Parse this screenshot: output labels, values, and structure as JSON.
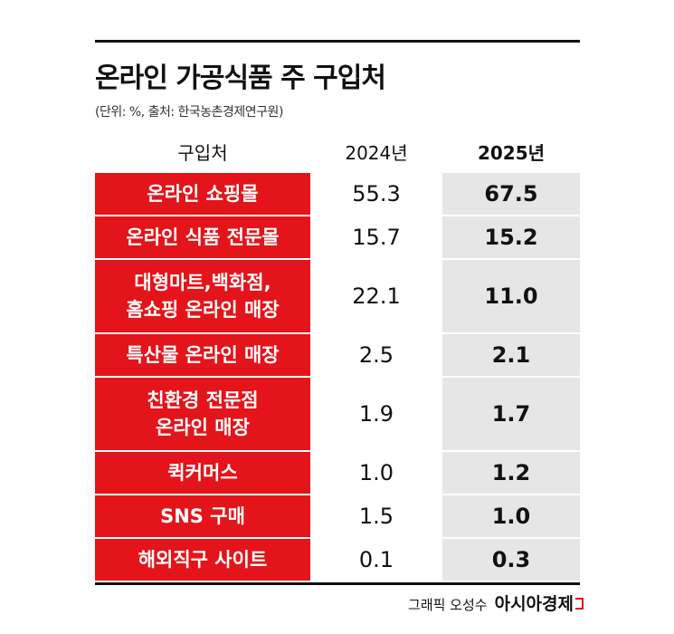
{
  "title": "온라인 가공식품 주 구입처",
  "subtitle": "(단위: %, 출처: 한국농촌경제연구원)",
  "table": {
    "header": [
      "구입처",
      "2024년",
      "2025년"
    ],
    "rows": [
      {
        "label": [
          "온라인 쇼핑몰"
        ],
        "y2024": "55.3",
        "y2025": "67.5"
      },
      {
        "label": [
          "온라인 식품 전문몰"
        ],
        "y2024": "15.7",
        "y2025": "15.2"
      },
      {
        "label": [
          "대형마트,백화점,",
          "홈쇼핑 온라인 매장"
        ],
        "y2024": "22.1",
        "y2025": "11.0"
      },
      {
        "label": [
          "특산물 온라인 매장"
        ],
        "y2024": "2.5",
        "y2025": "2.1"
      },
      {
        "label": [
          "친환경 전문점",
          "온라인 매장"
        ],
        "y2024": "1.9",
        "y2025": "1.7"
      },
      {
        "label": [
          "퀵커머스"
        ],
        "y2024": "1.0",
        "y2025": "1.2"
      },
      {
        "label": [
          "SNS 구매"
        ],
        "y2024": "1.5",
        "y2025": "1.0"
      },
      {
        "label": [
          "해외직구 사이트"
        ],
        "y2024": "0.1",
        "y2025": "0.3"
      }
    ]
  },
  "footer": {
    "credit": "그래픽 오성수",
    "brand": "아시아경제"
  }
}
